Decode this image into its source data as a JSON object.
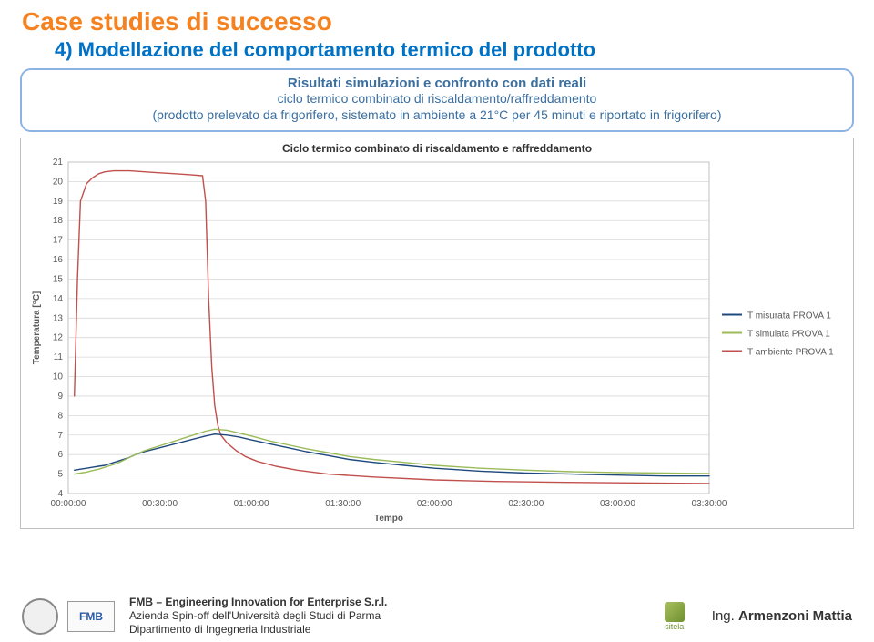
{
  "header": {
    "title": "Case studies di successo",
    "subtitle": "4) Modellazione del comportamento termico del prodotto"
  },
  "description": {
    "line1": "Risultati simulazioni e confronto con dati reali",
    "line2": "ciclo termico combinato di riscaldamento/raffreddamento\n(prodotto prelevato da frigorifero, sistemato in ambiente a 21°C per 45 minuti e riportato in frigorifero)"
  },
  "chart": {
    "type": "line",
    "title": "Ciclo termico combinato di riscaldamento e raffreddamento",
    "xlabel": "Tempo",
    "ylabel": "Temperatura [°C]",
    "label_fontsize": 10,
    "title_fontsize": 12,
    "background_color": "#ffffff",
    "grid_color": "#d9d9d9",
    "plot_border_color": "#bfbfbf",
    "axis_color": "#808080",
    "ylim": [
      4,
      21
    ],
    "ytick_step": 1,
    "yticks": [
      4,
      5,
      6,
      7,
      8,
      9,
      10,
      11,
      12,
      13,
      14,
      15,
      16,
      17,
      18,
      19,
      20,
      21
    ],
    "xticks": [
      "00:00:00",
      "00:30:00",
      "01:00:00",
      "01:30:00",
      "02:00:00",
      "02:30:00",
      "03:00:00",
      "03:30:00"
    ],
    "xtick_minutes": [
      0,
      30,
      60,
      90,
      120,
      150,
      180,
      210
    ],
    "xlim_minutes": [
      0,
      210
    ],
    "line_width": 1.4,
    "series": [
      {
        "name": "T misurata PROVA 1",
        "color": "#1f497d",
        "x_minutes": [
          2,
          4,
          6,
          8,
          10,
          12,
          14,
          16,
          18,
          20,
          22,
          25,
          30,
          35,
          40,
          45,
          48,
          52,
          56,
          60,
          66,
          72,
          78,
          85,
          92,
          100,
          110,
          120,
          135,
          150,
          165,
          180,
          195,
          210
        ],
        "y": [
          5.2,
          5.25,
          5.3,
          5.35,
          5.4,
          5.45,
          5.55,
          5.65,
          5.75,
          5.85,
          6.0,
          6.15,
          6.35,
          6.55,
          6.75,
          6.95,
          7.05,
          7.0,
          6.9,
          6.75,
          6.55,
          6.35,
          6.15,
          5.95,
          5.75,
          5.6,
          5.45,
          5.3,
          5.15,
          5.05,
          5.0,
          4.95,
          4.9,
          4.9
        ]
      },
      {
        "name": "T simulata PROVA 1",
        "color": "#9bbb59",
        "x_minutes": [
          2,
          4,
          6,
          8,
          10,
          12,
          14,
          16,
          18,
          20,
          22,
          25,
          30,
          35,
          40,
          45,
          48,
          52,
          56,
          60,
          66,
          72,
          78,
          85,
          92,
          100,
          110,
          120,
          135,
          150,
          165,
          180,
          195,
          210
        ],
        "y": [
          5.0,
          5.05,
          5.1,
          5.18,
          5.25,
          5.35,
          5.45,
          5.55,
          5.7,
          5.85,
          6.0,
          6.2,
          6.45,
          6.7,
          6.95,
          7.2,
          7.3,
          7.25,
          7.1,
          6.95,
          6.7,
          6.5,
          6.3,
          6.1,
          5.9,
          5.75,
          5.6,
          5.45,
          5.3,
          5.2,
          5.12,
          5.08,
          5.05,
          5.03
        ]
      },
      {
        "name": "T ambiente PROVA 1",
        "color": "#c0504d",
        "x_minutes": [
          2,
          3,
          4,
          6,
          8,
          10,
          12,
          15,
          20,
          25,
          30,
          35,
          40,
          44,
          45,
          46,
          47,
          48,
          49,
          50,
          52,
          55,
          58,
          62,
          68,
          75,
          85,
          100,
          120,
          140,
          160,
          180,
          200,
          210
        ],
        "y": [
          9.0,
          15.0,
          19.0,
          19.9,
          20.2,
          20.4,
          20.5,
          20.55,
          20.55,
          20.5,
          20.45,
          20.4,
          20.35,
          20.3,
          19.0,
          14.0,
          10.5,
          8.5,
          7.5,
          7.0,
          6.6,
          6.2,
          5.9,
          5.65,
          5.4,
          5.2,
          5.0,
          4.85,
          4.7,
          4.62,
          4.58,
          4.55,
          4.53,
          4.52
        ]
      }
    ],
    "legend": {
      "position": "right",
      "fontsize": 10,
      "items": [
        {
          "label": "T misurata PROVA 1",
          "color": "#1f497d"
        },
        {
          "label": "T simulata PROVA 1",
          "color": "#9bbb59"
        },
        {
          "label": "T ambiente PROVA 1",
          "color": "#c0504d"
        }
      ]
    }
  },
  "footer": {
    "logo_fmb_text": "FMB",
    "org_line1": "FMB – Engineering Innovation for Enterprise S.r.l.",
    "org_line2": "Azienda Spin-off dell'Università degli Studi di Parma",
    "org_line3": "Dipartimento di Ingegneria Industriale",
    "sitea_text": "sitela",
    "author_prefix": "Ing. ",
    "author_name": "Armenzoni Mattia"
  }
}
